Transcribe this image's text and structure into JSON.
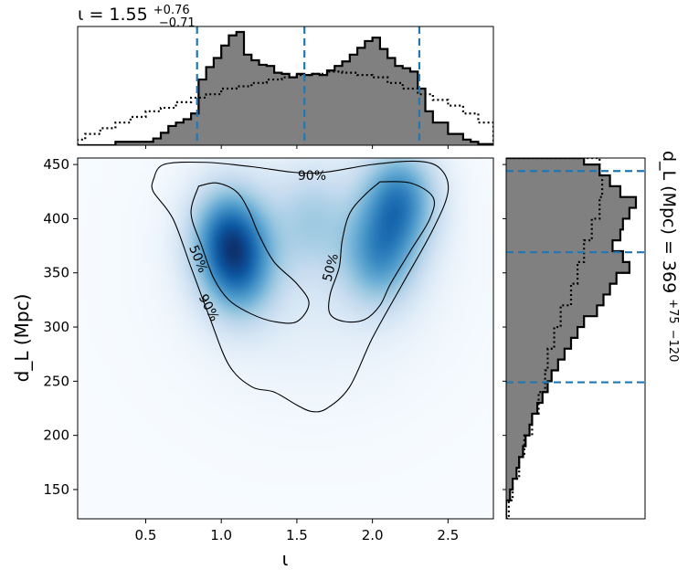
{
  "chart_data": [
    {
      "type": "heatmap",
      "panel": "joint",
      "xlabel": "ι",
      "ylabel": "d_L (Mpc)",
      "xlim": [
        0.05,
        2.8
      ],
      "ylim": [
        123,
        456
      ],
      "xticks": [
        0.5,
        1.0,
        1.5,
        2.0,
        2.5
      ],
      "xtick_labels": [
        "0.5",
        "1.0",
        "1.5",
        "2.0",
        "2.5"
      ],
      "yticks": [
        150,
        200,
        250,
        300,
        350,
        400,
        450
      ],
      "ytick_labels": [
        "150",
        "200",
        "250",
        "300",
        "350",
        "400",
        "450"
      ],
      "colormap": "Blues",
      "density_peaks": [
        {
          "x": 1.05,
          "y": 385,
          "amplitude": 1.0
        },
        {
          "x": 1.12,
          "y": 350,
          "amplitude": 0.75
        },
        {
          "x": 2.18,
          "y": 418,
          "amplitude": 0.95
        },
        {
          "x": 2.05,
          "y": 365,
          "amplitude": 0.75
        },
        {
          "x": 1.6,
          "y": 400,
          "amplitude": 0.35
        }
      ],
      "contours": [
        {
          "label": "90%",
          "label_positions": [
            [
              1.6,
              440
            ],
            [
              0.92,
              318
            ]
          ],
          "path": [
            [
              0.55,
              436
            ],
            [
              0.62,
              450
            ],
            [
              0.9,
              452
            ],
            [
              1.2,
              448
            ],
            [
              1.6,
              442
            ],
            [
              2.0,
              450
            ],
            [
              2.3,
              453
            ],
            [
              2.45,
              446
            ],
            [
              2.5,
              425
            ],
            [
              2.4,
              390
            ],
            [
              2.2,
              340
            ],
            [
              2.0,
              290
            ],
            [
              1.85,
              245
            ],
            [
              1.7,
              225
            ],
            [
              1.6,
              222
            ],
            [
              1.5,
              228
            ],
            [
              1.35,
              240
            ],
            [
              1.2,
              245
            ],
            [
              1.05,
              265
            ],
            [
              0.92,
              310
            ],
            [
              0.8,
              355
            ],
            [
              0.68,
              400
            ],
            [
              0.55,
              425
            ],
            [
              0.55,
              436
            ]
          ]
        },
        {
          "label": "50%",
          "label_positions": [
            [
              0.85,
              363
            ],
            [
              1.72,
              355
            ]
          ],
          "path": [
            [
              0.85,
              430
            ],
            [
              0.97,
              433
            ],
            [
              1.1,
              425
            ],
            [
              1.18,
              408
            ],
            [
              1.25,
              385
            ],
            [
              1.35,
              360
            ],
            [
              1.5,
              340
            ],
            [
              1.58,
              322
            ],
            [
              1.5,
              305
            ],
            [
              1.35,
              305
            ],
            [
              1.2,
              312
            ],
            [
              1.05,
              325
            ],
            [
              0.95,
              345
            ],
            [
              0.87,
              375
            ],
            [
              0.8,
              405
            ],
            [
              0.85,
              430
            ]
          ],
          "path2": [
            [
              2.05,
              434
            ],
            [
              2.25,
              433
            ],
            [
              2.4,
              420
            ],
            [
              2.38,
              400
            ],
            [
              2.25,
              370
            ],
            [
              2.12,
              340
            ],
            [
              2.05,
              320
            ],
            [
              1.95,
              307
            ],
            [
              1.82,
              305
            ],
            [
              1.72,
              312
            ],
            [
              1.72,
              330
            ],
            [
              1.78,
              355
            ],
            [
              1.8,
              380
            ],
            [
              1.85,
              405
            ],
            [
              1.95,
              422
            ],
            [
              2.05,
              434
            ]
          ]
        }
      ]
    },
    {
      "type": "bar",
      "panel": "top-marginal",
      "title": "ι = 1.55",
      "title_sup": "+0.76",
      "title_sub": "−0.71",
      "median": 1.55,
      "lower": 0.84,
      "upper": 2.31,
      "series": [
        {
          "style": "filled-step",
          "x": [
            0.05,
            0.3,
            0.55,
            0.6,
            0.65,
            0.7,
            0.75,
            0.8,
            0.85,
            0.9,
            0.95,
            1.0,
            1.05,
            1.1,
            1.15,
            1.2,
            1.25,
            1.3,
            1.35,
            1.4,
            1.45,
            1.5,
            1.55,
            1.6,
            1.65,
            1.7,
            1.75,
            1.8,
            1.85,
            1.9,
            1.95,
            2.0,
            2.05,
            2.1,
            2.15,
            2.2,
            2.25,
            2.3,
            2.35,
            2.4,
            2.5,
            2.6,
            2.65,
            2.7,
            2.8
          ],
          "values": [
            0,
            0.03,
            0.06,
            0.11,
            0.17,
            0.2,
            0.23,
            0.28,
            0.58,
            0.69,
            0.77,
            0.88,
            0.97,
            1.0,
            0.8,
            0.75,
            0.71,
            0.7,
            0.64,
            0.63,
            0.6,
            0.63,
            0.62,
            0.63,
            0.62,
            0.66,
            0.7,
            0.74,
            0.8,
            0.86,
            0.92,
            0.95,
            0.85,
            0.77,
            0.7,
            0.68,
            0.65,
            0.5,
            0.3,
            0.2,
            0.1,
            0.05,
            0.03,
            0.01,
            0
          ]
        },
        {
          "style": "dotted-step",
          "x": [
            0.05,
            0.1,
            0.2,
            0.3,
            0.4,
            0.5,
            0.6,
            0.7,
            0.8,
            0.9,
            1.0,
            1.1,
            1.2,
            1.3,
            1.4,
            1.5,
            1.6,
            1.7,
            1.8,
            1.9,
            2.0,
            2.1,
            2.2,
            2.3,
            2.4,
            2.5,
            2.6,
            2.7,
            2.8
          ],
          "values": [
            0.05,
            0.1,
            0.15,
            0.2,
            0.25,
            0.3,
            0.33,
            0.38,
            0.42,
            0.45,
            0.5,
            0.52,
            0.55,
            0.58,
            0.6,
            0.62,
            0.63,
            0.65,
            0.64,
            0.62,
            0.6,
            0.55,
            0.5,
            0.45,
            0.4,
            0.35,
            0.28,
            0.2,
            0.15
          ]
        }
      ]
    },
    {
      "type": "bar",
      "panel": "right-marginal",
      "title": "d_L (Mpc) = 369",
      "title_sup": "+75",
      "title_sub": "−120",
      "median": 369,
      "lower": 249,
      "upper": 444,
      "series": [
        {
          "style": "filled-step",
          "y": [
            123,
            140,
            150,
            160,
            170,
            180,
            190,
            200,
            210,
            220,
            230,
            240,
            250,
            260,
            270,
            280,
            290,
            300,
            310,
            320,
            330,
            340,
            350,
            360,
            370,
            380,
            390,
            400,
            410,
            420,
            430,
            440,
            450,
            456
          ],
          "values": [
            0,
            0.03,
            0.05,
            0.08,
            0.1,
            0.13,
            0.15,
            0.18,
            0.2,
            0.24,
            0.28,
            0.32,
            0.35,
            0.4,
            0.45,
            0.5,
            0.55,
            0.6,
            0.7,
            0.75,
            0.8,
            0.85,
            0.95,
            0.9,
            0.82,
            0.88,
            0.9,
            0.95,
            1.0,
            0.88,
            0.8,
            0.72,
            0.6,
            0.5
          ]
        },
        {
          "style": "dotted-step",
          "y": [
            123,
            140,
            160,
            180,
            200,
            220,
            240,
            260,
            280,
            300,
            320,
            340,
            360,
            380,
            400,
            420,
            440,
            456
          ],
          "values": [
            0.02,
            0.05,
            0.1,
            0.14,
            0.2,
            0.25,
            0.3,
            0.32,
            0.37,
            0.42,
            0.5,
            0.55,
            0.6,
            0.66,
            0.72,
            0.74,
            0.72,
            0.72
          ]
        }
      ]
    }
  ]
}
